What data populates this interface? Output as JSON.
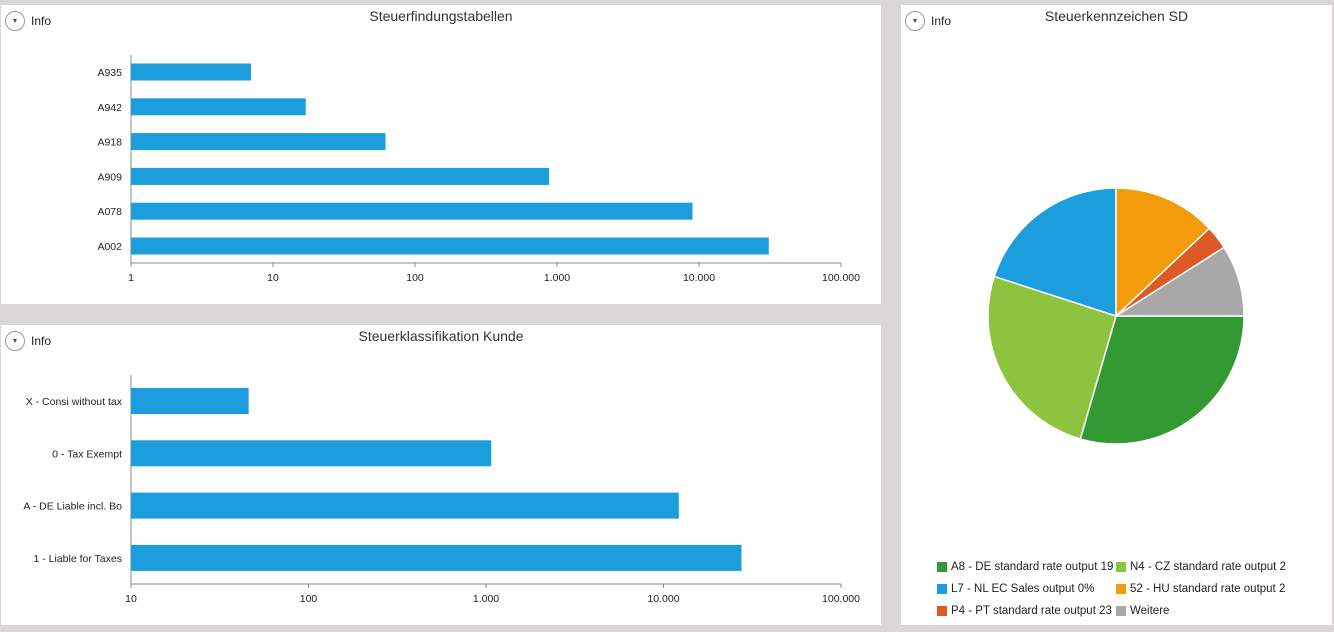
{
  "panels": [
    {
      "info_label": "Info",
      "title": "Steuerfindungstabellen",
      "chart_data": {
        "type": "bar",
        "orientation": "horizontal",
        "x_scale": "log",
        "categories": [
          "A935",
          "A942",
          "A918",
          "A909",
          "A078",
          "A002"
        ],
        "values": [
          7,
          17,
          62,
          880,
          9000,
          31000
        ],
        "xlim": [
          1,
          100000
        ],
        "xticks": [
          1,
          10,
          100,
          1000,
          10000,
          100000
        ],
        "xtick_labels": [
          "1",
          "10",
          "100",
          "1.000",
          "10.000",
          "100.000"
        ],
        "color": "#1c9ddd"
      }
    },
    {
      "info_label": "Info",
      "title": "Steuerklassifikation Kunde",
      "chart_data": {
        "type": "bar",
        "orientation": "horizontal",
        "x_scale": "log",
        "categories": [
          "X - Consi without tax",
          "0 - Tax Exempt",
          "A - DE Liable incl. Bo",
          "1 - Liable for Taxes"
        ],
        "values": [
          46,
          1070,
          12200,
          27500
        ],
        "xlim": [
          10,
          100000
        ],
        "xticks": [
          10,
          100,
          1000,
          10000,
          100000
        ],
        "xtick_labels": [
          "10",
          "100",
          "1.000",
          "10.000",
          "100.000"
        ],
        "color": "#1c9ddd"
      }
    },
    {
      "info_label": "Info",
      "title": "Steuerkennzeichen SD",
      "chart_data": {
        "type": "pie",
        "slices": [
          {
            "label": "A8 - DE standard rate output 19",
            "value": 29.5,
            "color": "#339933"
          },
          {
            "label": "N4 - CZ standard rate output 2",
            "value": 25.5,
            "color": "#8dc43f"
          },
          {
            "label": "L7 - NL EC Sales output 0%",
            "value": 20.0,
            "color": "#1c9ddd"
          },
          {
            "label": "52 - HU standard rate output 2",
            "value": 13.0,
            "color": "#f39c0b"
          },
          {
            "label": "P4 - PT standard rate output 23",
            "value": 3.0,
            "color": "#dd5a27"
          },
          {
            "label": "Weitere",
            "value": 9.0,
            "color": "#a8a8a8"
          }
        ],
        "legend": "bottom"
      }
    }
  ]
}
